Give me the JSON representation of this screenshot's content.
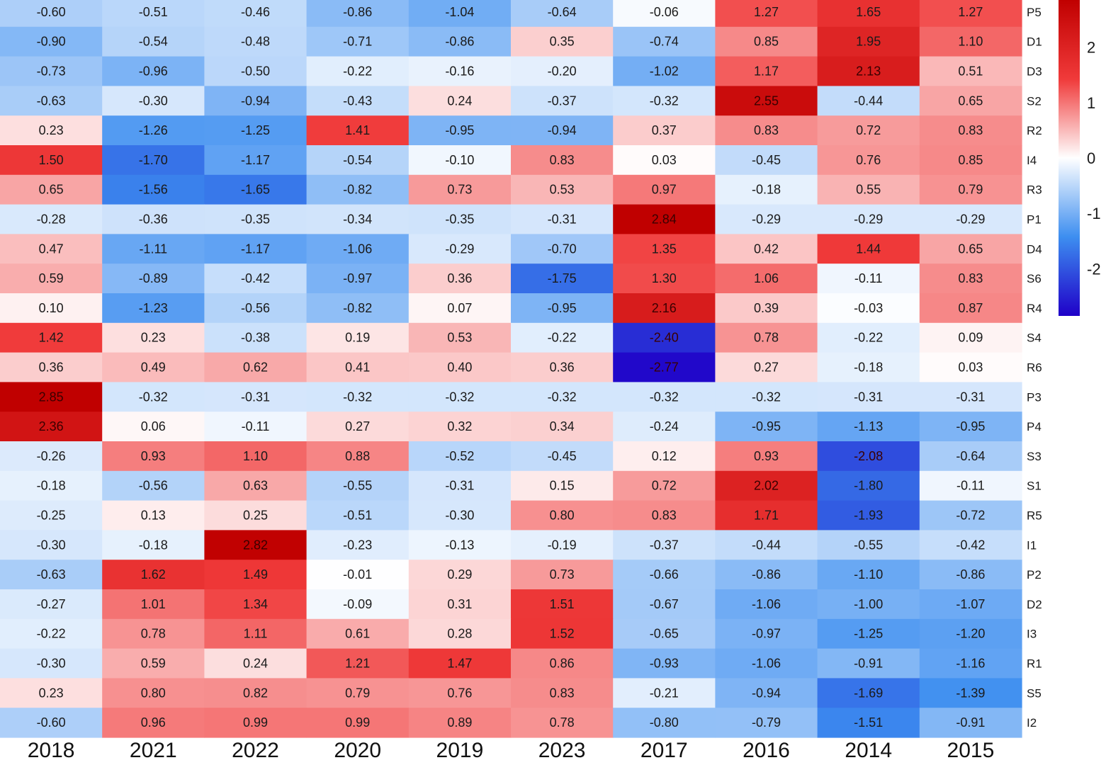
{
  "chart_data": {
    "type": "heatmap",
    "columns": [
      "2018",
      "2021",
      "2022",
      "2020",
      "2019",
      "2023",
      "2017",
      "2016",
      "2014",
      "2015"
    ],
    "rows": [
      "P5",
      "D1",
      "D3",
      "S2",
      "R2",
      "I4",
      "R3",
      "P1",
      "D4",
      "S6",
      "R4",
      "S4",
      "R6",
      "P3",
      "P4",
      "S3",
      "S1",
      "R5",
      "I1",
      "P2",
      "D2",
      "I3",
      "R1",
      "S5",
      "I2"
    ],
    "values": [
      [
        -0.6,
        -0.51,
        -0.46,
        -0.86,
        -1.04,
        -0.64,
        -0.06,
        1.27,
        1.65,
        1.27
      ],
      [
        -0.9,
        -0.54,
        -0.48,
        -0.71,
        -0.86,
        0.35,
        -0.74,
        0.85,
        1.95,
        1.1
      ],
      [
        -0.73,
        -0.96,
        -0.5,
        -0.22,
        -0.16,
        -0.2,
        -1.02,
        1.17,
        2.13,
        0.51
      ],
      [
        -0.63,
        -0.3,
        -0.94,
        -0.43,
        0.24,
        -0.37,
        -0.32,
        2.55,
        -0.44,
        0.65
      ],
      [
        0.23,
        -1.26,
        -1.25,
        1.41,
        -0.95,
        -0.94,
        0.37,
        0.83,
        0.72,
        0.83
      ],
      [
        1.5,
        -1.7,
        -1.17,
        -0.54,
        -0.1,
        0.83,
        0.03,
        -0.45,
        0.76,
        0.85
      ],
      [
        0.65,
        -1.56,
        -1.65,
        -0.82,
        0.73,
        0.53,
        0.97,
        -0.18,
        0.55,
        0.79
      ],
      [
        -0.28,
        -0.36,
        -0.35,
        -0.34,
        -0.35,
        -0.31,
        2.84,
        -0.29,
        -0.29,
        -0.29
      ],
      [
        0.47,
        -1.11,
        -1.17,
        -1.06,
        -0.29,
        -0.7,
        1.35,
        0.42,
        1.44,
        0.65
      ],
      [
        0.59,
        -0.89,
        -0.42,
        -0.97,
        0.36,
        -1.75,
        1.3,
        1.06,
        -0.11,
        0.83
      ],
      [
        0.1,
        -1.23,
        -0.56,
        -0.82,
        0.07,
        -0.95,
        2.16,
        0.39,
        -0.03,
        0.87
      ],
      [
        1.42,
        0.23,
        -0.38,
        0.19,
        0.53,
        -0.22,
        -2.4,
        0.78,
        -0.22,
        0.09
      ],
      [
        0.36,
        0.49,
        0.62,
        0.41,
        0.4,
        0.36,
        -2.77,
        0.27,
        -0.18,
        0.03
      ],
      [
        2.85,
        -0.32,
        -0.31,
        -0.32,
        -0.32,
        -0.32,
        -0.32,
        -0.32,
        -0.31,
        -0.31
      ],
      [
        2.36,
        0.06,
        -0.11,
        0.27,
        0.32,
        0.34,
        -0.24,
        -0.95,
        -1.13,
        -0.95
      ],
      [
        -0.26,
        0.93,
        1.1,
        0.88,
        -0.52,
        -0.45,
        0.12,
        0.93,
        -2.08,
        -0.64
      ],
      [
        -0.18,
        -0.56,
        0.63,
        -0.55,
        -0.31,
        0.15,
        0.72,
        2.02,
        -1.8,
        -0.11
      ],
      [
        -0.25,
        0.13,
        0.25,
        -0.51,
        -0.3,
        0.8,
        0.83,
        1.71,
        -1.93,
        -0.72
      ],
      [
        -0.3,
        -0.18,
        2.82,
        -0.23,
        -0.13,
        -0.19,
        -0.37,
        -0.44,
        -0.55,
        -0.42
      ],
      [
        -0.63,
        1.62,
        1.49,
        -0.01,
        0.29,
        0.73,
        -0.66,
        -0.86,
        -1.1,
        -0.86
      ],
      [
        -0.27,
        1.01,
        1.34,
        -0.09,
        0.31,
        1.51,
        -0.67,
        -1.06,
        -1.0,
        -1.07
      ],
      [
        -0.22,
        0.78,
        1.11,
        0.61,
        0.28,
        1.52,
        -0.65,
        -0.97,
        -1.25,
        -1.2
      ],
      [
        -0.3,
        0.59,
        0.24,
        1.21,
        1.47,
        0.86,
        -0.93,
        -1.06,
        -0.91,
        -1.16
      ],
      [
        0.23,
        0.8,
        0.82,
        0.79,
        0.76,
        0.83,
        -0.21,
        -0.94,
        -1.69,
        -1.39
      ],
      [
        -0.6,
        0.96,
        0.99,
        0.99,
        0.89,
        0.78,
        -0.8,
        -0.79,
        -1.51,
        -0.91
      ]
    ],
    "colorbar": {
      "ticks": [
        2,
        1,
        0,
        -1,
        -2
      ],
      "tick_labels": [
        "2",
        "1",
        "0",
        "-1",
        "-2"
      ],
      "range": [
        -2.85,
        2.85
      ],
      "low_color": "#1f00c8",
      "mid_low_color": "#3d8ef0",
      "mid_color": "#ffffff",
      "mid_high_color": "#f03a3a",
      "high_color": "#c00000"
    }
  }
}
